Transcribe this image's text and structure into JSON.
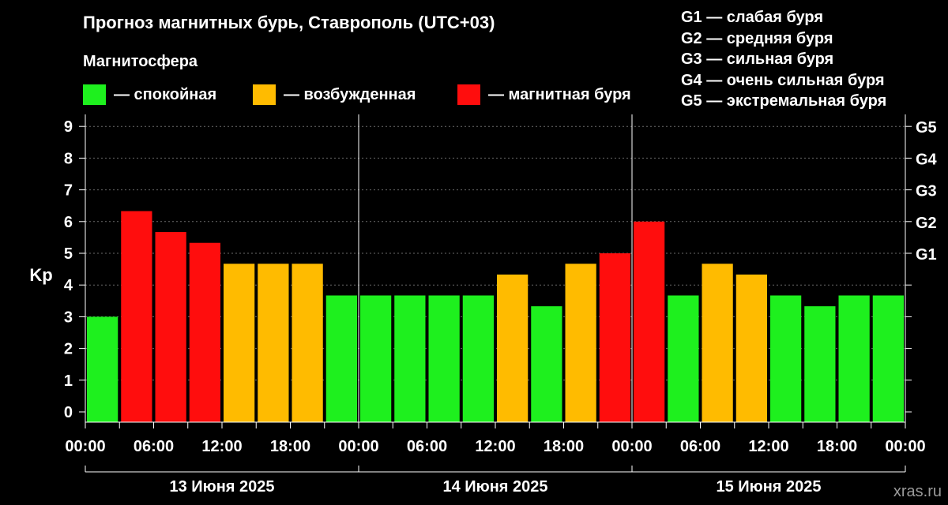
{
  "title": "Прогноз магнитных бурь, Ставрополь (UTC+03)",
  "subtitle": "Магнитосфера",
  "legend": [
    {
      "label": "— спокойная",
      "color": "#1ef01e"
    },
    {
      "label": "— возбужденная",
      "color": "#ffbb00"
    },
    {
      "label": "— магнитная буря",
      "color": "#ff0d0d"
    }
  ],
  "storm_levels": [
    "G1 — слабая буря",
    "G2 — средняя буря",
    "G3 — сильная буря",
    "G4 — очень сильная буря",
    "G5 — экстремальная буря"
  ],
  "watermark": "xras.ru",
  "chart_data": {
    "type": "bar",
    "ylabel": "Kp",
    "ylim": [
      0,
      9
    ],
    "yticks": [
      "0",
      "1",
      "2",
      "3",
      "4",
      "5",
      "6",
      "7",
      "8",
      "9"
    ],
    "right_ticks": [
      {
        "kp": 5,
        "label": "G1"
      },
      {
        "kp": 6,
        "label": "G2"
      },
      {
        "kp": 7,
        "label": "G3"
      },
      {
        "kp": 8,
        "label": "G4"
      },
      {
        "kp": 9,
        "label": "G5"
      }
    ],
    "xtick_labels": [
      "00:00",
      "06:00",
      "12:00",
      "18:00",
      "00:00",
      "06:00",
      "12:00",
      "18:00",
      "00:00",
      "06:00",
      "12:00",
      "18:00",
      "00:00"
    ],
    "days": [
      "13 Июня 2025",
      "14 Июня 2025",
      "15 Июня 2025"
    ],
    "interval_hours": 3,
    "grid": true,
    "values": [
      3.0,
      6.33,
      5.67,
      5.33,
      4.67,
      4.67,
      4.67,
      3.67,
      3.67,
      3.67,
      3.67,
      3.67,
      4.33,
      3.33,
      4.67,
      5.0,
      6.0,
      3.67,
      4.67,
      4.33,
      3.67,
      3.33,
      3.67,
      3.67
    ],
    "colors": [
      "#1ef01e",
      "#ff0d0d",
      "#ff0d0d",
      "#ff0d0d",
      "#ffbb00",
      "#ffbb00",
      "#ffbb00",
      "#1ef01e",
      "#1ef01e",
      "#1ef01e",
      "#1ef01e",
      "#1ef01e",
      "#ffbb00",
      "#1ef01e",
      "#ffbb00",
      "#ff0d0d",
      "#ff0d0d",
      "#1ef01e",
      "#ffbb00",
      "#ffbb00",
      "#1ef01e",
      "#1ef01e",
      "#1ef01e",
      "#1ef01e"
    ]
  }
}
